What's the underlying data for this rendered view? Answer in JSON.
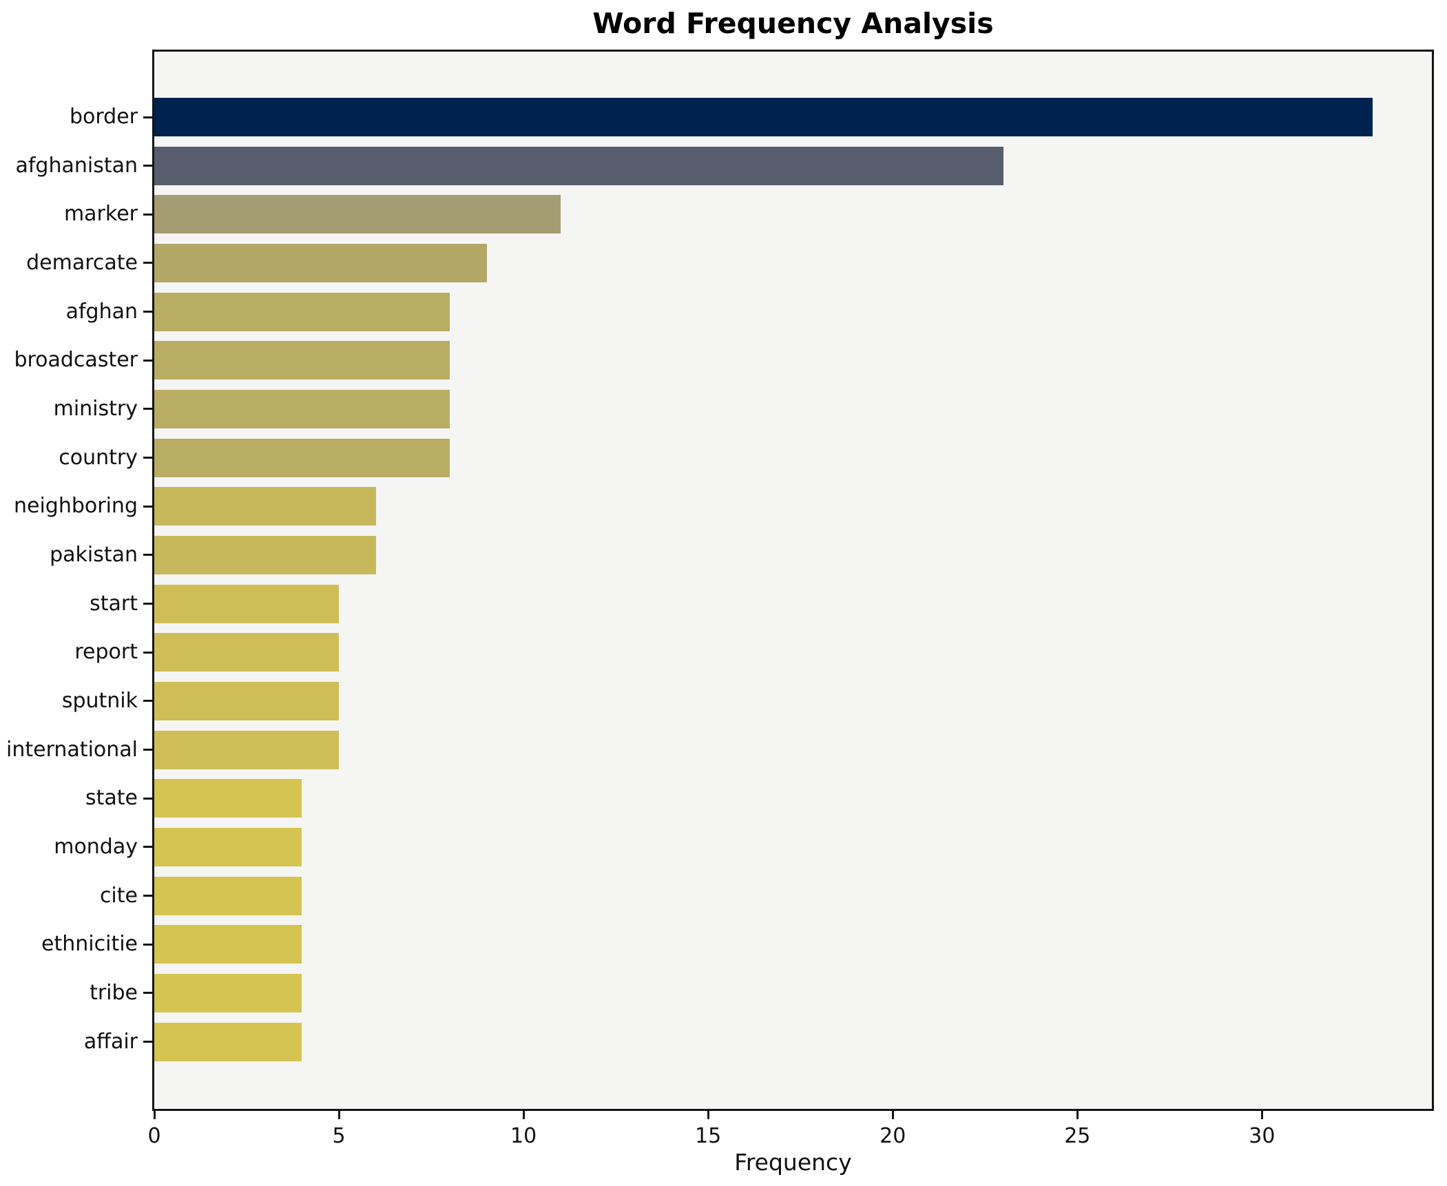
{
  "chart_data": {
    "type": "bar",
    "orientation": "horizontal",
    "title": "Word Frequency Analysis",
    "xlabel": "Frequency",
    "ylabel": "",
    "categories": [
      "border",
      "afghanistan",
      "marker",
      "demarcate",
      "afghan",
      "broadcaster",
      "ministry",
      "country",
      "neighboring",
      "pakistan",
      "start",
      "report",
      "sputnik",
      "international",
      "state",
      "monday",
      "cite",
      "ethnicitie",
      "tribe",
      "affair"
    ],
    "values": [
      33,
      23,
      11,
      9,
      8,
      8,
      8,
      8,
      6,
      6,
      5,
      5,
      5,
      5,
      4,
      4,
      4,
      4,
      4,
      4
    ],
    "bar_colors": [
      "#00224e",
      "#575d6d",
      "#a49c72",
      "#b3a768",
      "#b9ac63",
      "#b9ac63",
      "#b9ac63",
      "#b9ac63",
      "#c8b85c",
      "#c8b85c",
      "#cfbe58",
      "#cfbe58",
      "#cfbe58",
      "#cfbe58",
      "#d6c452",
      "#d6c452",
      "#d6c452",
      "#d6c452",
      "#d6c452",
      "#d6c452"
    ],
    "xticks": [
      0,
      5,
      10,
      15,
      20,
      25,
      30
    ],
    "xlim": [
      0,
      34.6
    ],
    "grid": false,
    "legend": null,
    "plot_background": "#f5f5f3",
    "figure_background": "#ffffff",
    "colormap_note": "cividis reversed by value"
  }
}
